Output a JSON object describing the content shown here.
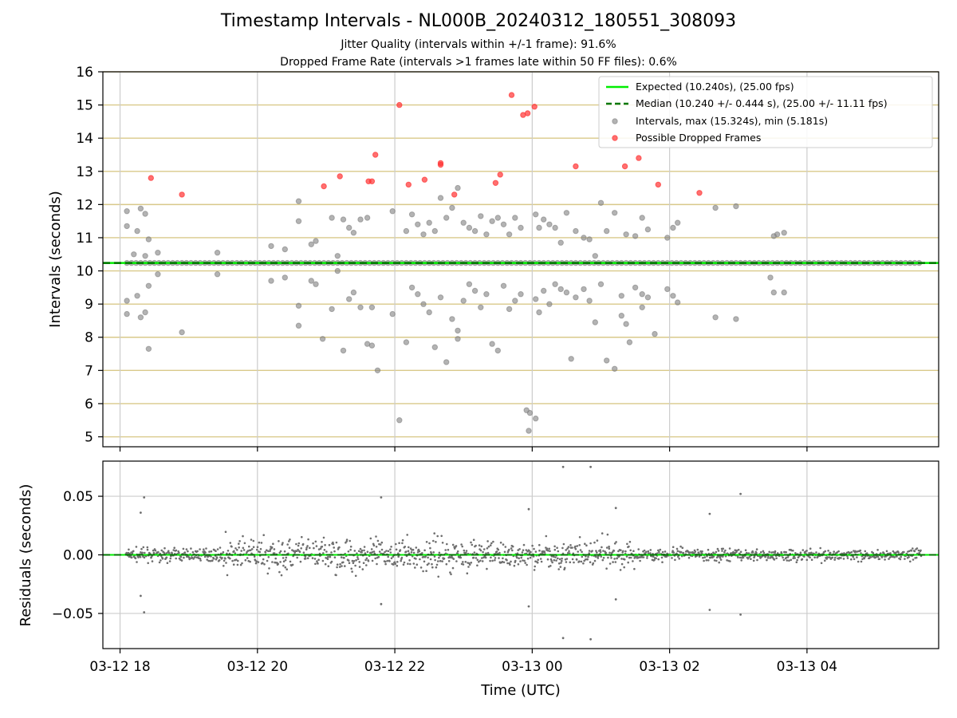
{
  "chart_data": [
    {
      "type": "scatter",
      "title": "Timestamp Intervals - NL000B_20240312_180551_308093",
      "subtitle_1": "Jitter Quality (intervals within +/-1 frame): 91.6%",
      "subtitle_2": "Dropped Frame Rate (intervals >1 frames late within 50 FF files): 0.6%",
      "ylabel": "Intervals (seconds)",
      "ylim": [
        4.7,
        16
      ],
      "yticks": [
        "5",
        "6",
        "7",
        "8",
        "9",
        "10",
        "11",
        "12",
        "13",
        "14",
        "15",
        "16"
      ],
      "xlim": [
        "03-12 17:45",
        "03-13 05:55"
      ],
      "grid": "horizontal lines at integer seconds, vertical lines at 2-hour ticks",
      "legend_position": "top-right",
      "legend": [
        "Expected (10.240s), (25.00 fps)",
        "Median (10.240 +/- 0.444 s), (25.00 +/- 11.11 fps)",
        "Intervals, max (15.324s), min (5.181s)",
        "Possible Dropped Frames"
      ],
      "expected_interval": 10.24,
      "median_interval": 10.24,
      "colors": {
        "expected": "#00ee00",
        "median": "#007700",
        "intervals": "#808080",
        "dropped": "#ff3333",
        "grid_h": "#d9c98a",
        "grid_v": "#cccccc"
      },
      "series": [
        {
          "name": "Intervals, max (15.324s), min (5.181s)",
          "points": [
            [
              "18:06",
              11.8
            ],
            [
              "18:06",
              11.35
            ],
            [
              "18:06",
              9.1
            ],
            [
              "18:06",
              8.7
            ],
            [
              "18:12",
              10.5
            ],
            [
              "18:15",
              11.2
            ],
            [
              "18:15",
              9.25
            ],
            [
              "18:18",
              11.88
            ],
            [
              "18:18",
              8.6
            ],
            [
              "18:22",
              11.72
            ],
            [
              "18:22",
              10.45
            ],
            [
              "18:22",
              8.75
            ],
            [
              "18:25",
              10.95
            ],
            [
              "18:25",
              9.55
            ],
            [
              "18:25",
              7.65
            ],
            [
              "18:33",
              10.55
            ],
            [
              "18:33",
              9.9
            ],
            [
              "18:54",
              8.15
            ],
            [
              "19:25",
              10.55
            ],
            [
              "19:25",
              9.9
            ],
            [
              "20:12",
              10.75
            ],
            [
              "20:12",
              9.7
            ],
            [
              "20:24",
              10.65
            ],
            [
              "20:24",
              9.8
            ],
            [
              "20:36",
              12.1
            ],
            [
              "20:36",
              11.5
            ],
            [
              "20:36",
              8.95
            ],
            [
              "20:36",
              8.35
            ],
            [
              "20:47",
              10.8
            ],
            [
              "20:47",
              9.7
            ],
            [
              "20:51",
              10.9
            ],
            [
              "20:51",
              9.6
            ],
            [
              "20:57",
              7.95
            ],
            [
              "21:05",
              11.6
            ],
            [
              "21:05",
              8.85
            ],
            [
              "21:10",
              10.45
            ],
            [
              "21:10",
              10.0
            ],
            [
              "21:15",
              11.55
            ],
            [
              "21:15",
              7.6
            ],
            [
              "21:20",
              11.3
            ],
            [
              "21:20",
              9.15
            ],
            [
              "21:24",
              11.15
            ],
            [
              "21:24",
              9.35
            ],
            [
              "21:30",
              11.55
            ],
            [
              "21:30",
              8.9
            ],
            [
              "21:36",
              11.6
            ],
            [
              "21:36",
              7.8
            ],
            [
              "21:40",
              7.75
            ],
            [
              "21:40",
              8.9
            ],
            [
              "21:45",
              7.0
            ],
            [
              "21:58",
              11.8
            ],
            [
              "21:58",
              8.7
            ],
            [
              "22:04",
              5.5
            ],
            [
              "22:10",
              11.2
            ],
            [
              "22:10",
              7.85
            ],
            [
              "22:15",
              11.7
            ],
            [
              "22:15",
              9.5
            ],
            [
              "22:20",
              11.4
            ],
            [
              "22:20",
              9.3
            ],
            [
              "22:25",
              11.1
            ],
            [
              "22:25",
              9.0
            ],
            [
              "22:30",
              11.45
            ],
            [
              "22:30",
              8.75
            ],
            [
              "22:35",
              11.2
            ],
            [
              "22:35",
              7.7
            ],
            [
              "22:40",
              12.2
            ],
            [
              "22:40",
              9.2
            ],
            [
              "22:45",
              7.25
            ],
            [
              "22:45",
              11.6
            ],
            [
              "22:50",
              11.9
            ],
            [
              "22:50",
              8.55
            ],
            [
              "22:55",
              12.5
            ],
            [
              "22:55",
              8.2
            ],
            [
              "22:55",
              7.95
            ],
            [
              "23:00",
              11.45
            ],
            [
              "23:00",
              9.1
            ],
            [
              "23:05",
              11.3
            ],
            [
              "23:05",
              9.6
            ],
            [
              "23:10",
              11.2
            ],
            [
              "23:10",
              9.4
            ],
            [
              "23:15",
              11.65
            ],
            [
              "23:15",
              8.9
            ],
            [
              "23:20",
              11.1
            ],
            [
              "23:20",
              9.3
            ],
            [
              "23:25",
              11.5
            ],
            [
              "23:25",
              7.8
            ],
            [
              "23:30",
              11.6
            ],
            [
              "23:30",
              7.6
            ],
            [
              "23:35",
              11.4
            ],
            [
              "23:35",
              9.55
            ],
            [
              "23:40",
              11.1
            ],
            [
              "23:40",
              8.85
            ],
            [
              "23:45",
              11.6
            ],
            [
              "23:45",
              9.1
            ],
            [
              "23:50",
              11.3
            ],
            [
              "23:50",
              9.3
            ],
            [
              "23:55",
              5.8
            ],
            [
              "23:58",
              5.72
            ],
            [
              "00:03",
              5.55
            ],
            [
              "23:57",
              5.18
            ],
            [
              "00:03",
              11.7
            ],
            [
              "00:03",
              9.15
            ],
            [
              "00:06",
              11.3
            ],
            [
              "00:06",
              8.75
            ],
            [
              "00:10",
              11.55
            ],
            [
              "00:10",
              9.4
            ],
            [
              "00:15",
              11.4
            ],
            [
              "00:15",
              9.0
            ],
            [
              "00:20",
              11.3
            ],
            [
              "00:20",
              9.6
            ],
            [
              "00:25",
              10.85
            ],
            [
              "00:25",
              9.45
            ],
            [
              "00:30",
              11.75
            ],
            [
              "00:30",
              9.35
            ],
            [
              "00:34",
              7.35
            ],
            [
              "00:38",
              11.2
            ],
            [
              "00:38",
              9.2
            ],
            [
              "00:45",
              11.0
            ],
            [
              "00:45",
              9.45
            ],
            [
              "00:50",
              10.95
            ],
            [
              "00:50",
              9.1
            ],
            [
              "00:55",
              10.45
            ],
            [
              "00:55",
              8.45
            ],
            [
              "01:00",
              12.05
            ],
            [
              "01:00",
              9.6
            ],
            [
              "01:05",
              11.2
            ],
            [
              "01:05",
              7.3
            ],
            [
              "01:12",
              11.75
            ],
            [
              "01:12",
              7.05
            ],
            [
              "01:18",
              9.25
            ],
            [
              "01:18",
              8.65
            ],
            [
              "01:22",
              11.1
            ],
            [
              "01:22",
              8.4
            ],
            [
              "01:25",
              7.85
            ],
            [
              "01:30",
              11.05
            ],
            [
              "01:30",
              9.5
            ],
            [
              "01:36",
              11.6
            ],
            [
              "01:36",
              9.3
            ],
            [
              "01:36",
              8.9
            ],
            [
              "01:41",
              11.25
            ],
            [
              "01:41",
              9.2
            ],
            [
              "01:58",
              11.0
            ],
            [
              "01:58",
              9.45
            ],
            [
              "02:03",
              11.3
            ],
            [
              "02:03",
              9.25
            ],
            [
              "02:07",
              11.45
            ],
            [
              "02:07",
              9.05
            ],
            [
              "01:47",
              8.1
            ],
            [
              "02:40",
              11.9
            ],
            [
              "02:40",
              8.6
            ],
            [
              "02:58",
              11.95
            ],
            [
              "02:58",
              8.55
            ],
            [
              "03:28",
              9.8
            ],
            [
              "03:31",
              11.05
            ],
            [
              "03:31",
              9.35
            ],
            [
              "03:34",
              11.1
            ],
            [
              "03:40",
              11.15
            ],
            [
              "03:40",
              9.35
            ]
          ]
        },
        {
          "name": "Possible Dropped Frames",
          "points": [
            [
              "18:27",
              12.8
            ],
            [
              "18:54",
              12.3
            ],
            [
              "20:58",
              12.55
            ],
            [
              "21:12",
              12.85
            ],
            [
              "21:37",
              12.7
            ],
            [
              "21:40",
              12.7
            ],
            [
              "21:43",
              13.5
            ],
            [
              "22:04",
              15.0
            ],
            [
              "22:12",
              12.6
            ],
            [
              "22:26",
              12.75
            ],
            [
              "22:40",
              13.2
            ],
            [
              "22:40",
              13.25
            ],
            [
              "22:52",
              12.3
            ],
            [
              "23:28",
              12.65
            ],
            [
              "23:32",
              12.9
            ],
            [
              "23:42",
              15.3
            ],
            [
              "23:52",
              14.7
            ],
            [
              "23:56",
              14.75
            ],
            [
              "00:02",
              14.95
            ],
            [
              "00:38",
              13.15
            ],
            [
              "01:21",
              13.15
            ],
            [
              "01:33",
              13.4
            ],
            [
              "01:50",
              12.6
            ],
            [
              "02:26",
              12.35
            ]
          ]
        }
      ]
    },
    {
      "type": "scatter",
      "ylabel": "Residuals (seconds)",
      "xlabel": "Time (UTC)",
      "ylim": [
        -0.08,
        0.08
      ],
      "yticks": [
        "−0.05",
        "0.00",
        "0.05"
      ],
      "xticks": [
        "03-12 18",
        "03-12 20",
        "03-12 22",
        "03-13 00",
        "03-13 02",
        "03-13 04"
      ],
      "reference_line": 0.0,
      "series": [
        {
          "name": "",
          "points": [
            [
              "18:18",
              0.036
            ],
            [
              "18:21",
              0.049
            ],
            [
              "18:18",
              -0.035
            ],
            [
              "18:21",
              -0.049
            ],
            [
              "21:48",
              0.049
            ],
            [
              "21:48",
              -0.042
            ],
            [
              "00:27",
              0.075
            ],
            [
              "00:51",
              0.075
            ],
            [
              "00:27",
              -0.071
            ],
            [
              "00:51",
              -0.072
            ],
            [
              "03:02",
              0.052
            ],
            [
              "03:02",
              -0.051
            ],
            [
              "23:57",
              0.039
            ],
            [
              "23:57",
              -0.044
            ],
            [
              "01:13",
              0.04
            ],
            [
              "01:13",
              -0.038
            ],
            [
              "02:35",
              0.035
            ],
            [
              "02:35",
              -0.047
            ]
          ]
        }
      ]
    }
  ]
}
